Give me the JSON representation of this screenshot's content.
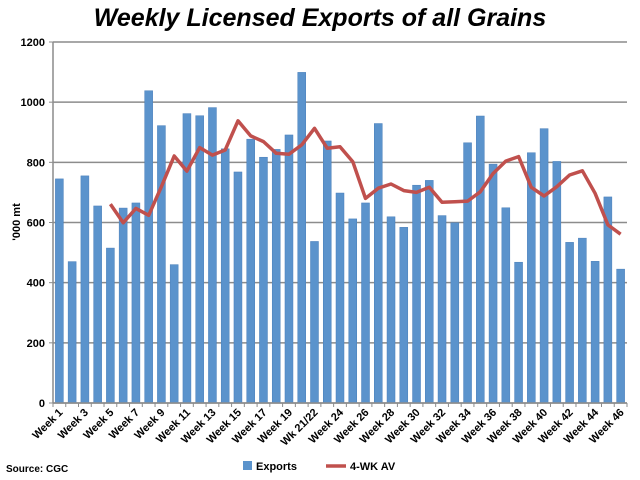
{
  "chart_data": {
    "type": "bar",
    "title": "Weekly Licensed Exports of all Grains",
    "xlabel": "",
    "ylabel": "'000 mt",
    "ylim": [
      0,
      1200
    ],
    "yticks": [
      0,
      200,
      400,
      600,
      800,
      1000,
      1200
    ],
    "grid": true,
    "legend_position": "bottom",
    "source": "Source: CGC",
    "categories": [
      "Week 1",
      "Week 2",
      "Week 3",
      "Week 4",
      "Week 5",
      "Week 6",
      "Week 7",
      "Week 8",
      "Week 9",
      "Week 10",
      "Week 11",
      "Week 12",
      "Week 13",
      "Week 14",
      "Week 15",
      "Week 16",
      "Week 17",
      "Week 18",
      "Week 19",
      "Week 20",
      "Wk 21/22",
      "Week 23",
      "Week 24",
      "Week 25",
      "Week 26",
      "Week 27",
      "Week 28",
      "Week 29",
      "Week 30",
      "Week 31",
      "Week 32",
      "Week 33",
      "Week 34",
      "Week 35",
      "Week 36",
      "Week 37",
      "Week 38",
      "Week 39",
      "Week 40",
      "Week 41",
      "Week 42",
      "Week 43",
      "Week 44",
      "Week 45",
      "Week 46"
    ],
    "visible_tick_labels": [
      "Week 1",
      "Week 3",
      "Week 5",
      "Week 7",
      "Week 9",
      "Week 11",
      "Week 13",
      "Week 15",
      "Week 17",
      "Week 19",
      "Wk 21/22",
      "Week 24",
      "Week 26",
      "Week 28",
      "Week 30",
      "Week 32",
      "Week 34",
      "Week 36",
      "Week 38",
      "Week 40",
      "Week 42",
      "Week 44",
      "Week 46"
    ],
    "series": [
      {
        "name": "Exports",
        "type": "bar",
        "color": "#5b93cc",
        "values": [
          745,
          470,
          755,
          655,
          515,
          648,
          665,
          1038,
          922,
          460,
          962,
          955,
          982,
          845,
          768,
          877,
          817,
          843,
          891,
          1099,
          537,
          871,
          698,
          612,
          665,
          929,
          619,
          584,
          724,
          740,
          623,
          599,
          865,
          954,
          794,
          649,
          468,
          832,
          912,
          803,
          534,
          548,
          471,
          685,
          445
        ]
      },
      {
        "name": "4-WK AV",
        "type": "line",
        "color": "#c0504d",
        "values": [
          null,
          null,
          null,
          null,
          661,
          599,
          647,
          624,
          719,
          821,
          771,
          849,
          824,
          841,
          938,
          888,
          869,
          830,
          827,
          858,
          913,
          847,
          852,
          802,
          680,
          714,
          728,
          706,
          700,
          717,
          667,
          669,
          671,
          702,
          763,
          804,
          819,
          717,
          688,
          719,
          758,
          772,
          697,
          592,
          561
        ]
      }
    ]
  }
}
